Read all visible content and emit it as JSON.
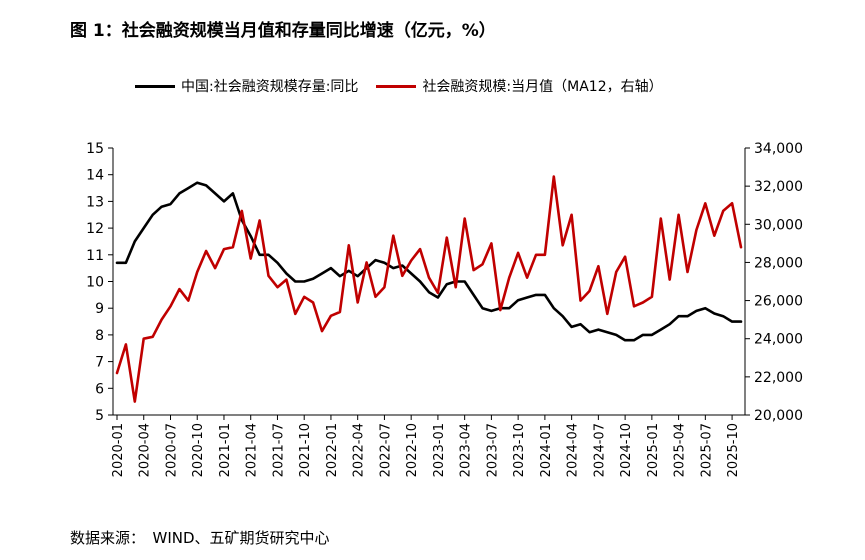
{
  "title": "图 1：社会融资规模当月值和存量同比增速（亿元，%）",
  "source": "数据来源：　WIND、五矿期货研究中心",
  "colors": {
    "series1": "#000000",
    "series2": "#c00000",
    "axis": "#000000"
  },
  "chart_data": {
    "type": "line",
    "x": [
      "2020-01",
      "2020-02",
      "2020-03",
      "2020-04",
      "2020-05",
      "2020-06",
      "2020-07",
      "2020-08",
      "2020-09",
      "2020-10",
      "2020-11",
      "2020-12",
      "2021-01",
      "2021-02",
      "2021-03",
      "2021-04",
      "2021-05",
      "2021-06",
      "2021-07",
      "2021-08",
      "2021-09",
      "2021-10",
      "2021-11",
      "2021-12",
      "2022-01",
      "2022-02",
      "2022-03",
      "2022-04",
      "2022-05",
      "2022-06",
      "2022-07",
      "2022-08",
      "2022-09",
      "2022-10",
      "2022-11",
      "2022-12",
      "2023-01",
      "2023-02",
      "2023-03",
      "2023-04",
      "2023-05",
      "2023-06",
      "2023-07",
      "2023-08",
      "2023-09",
      "2023-10",
      "2023-11",
      "2023-12",
      "2024-01",
      "2024-02",
      "2024-03",
      "2024-04",
      "2024-05",
      "2024-06",
      "2024-07",
      "2024-08",
      "2024-09",
      "2024-10",
      "2024-11",
      "2024-12",
      "2025-01",
      "2025-02",
      "2025-03",
      "2025-04",
      "2025-05",
      "2025-06",
      "2025-07",
      "2025-08",
      "2025-09",
      "2025-10",
      "2025-11"
    ],
    "x_tick_labels": [
      "2020-01",
      "2020-04",
      "2020-07",
      "2020-10",
      "2021-01",
      "2021-04",
      "2021-07",
      "2021-10",
      "2022-01",
      "2022-04",
      "2022-07",
      "2022-10",
      "2023-01",
      "2023-04",
      "2023-07",
      "2023-10",
      "2024-01",
      "2024-04",
      "2024-07",
      "2024-10",
      "2025-01",
      "2025-04",
      "2025-07",
      "2025-10"
    ],
    "series": [
      {
        "name": "中国:社会融资规模存量:同比",
        "axis": "left",
        "values": [
          10.7,
          10.7,
          11.5,
          12.0,
          12.5,
          12.8,
          12.9,
          13.3,
          13.5,
          13.7,
          13.6,
          13.3,
          13.0,
          13.3,
          12.3,
          11.7,
          11.0,
          11.0,
          10.7,
          10.3,
          10.0,
          10.0,
          10.1,
          10.3,
          10.5,
          10.2,
          10.4,
          10.2,
          10.5,
          10.8,
          10.7,
          10.5,
          10.6,
          10.3,
          10.0,
          9.6,
          9.4,
          9.9,
          10.0,
          10.0,
          9.5,
          9.0,
          8.9,
          9.0,
          9.0,
          9.3,
          9.4,
          9.5,
          9.5,
          9.0,
          8.7,
          8.3,
          8.4,
          8.1,
          8.2,
          8.1,
          8.0,
          7.8,
          7.8,
          8.0,
          8.0,
          8.2,
          8.4,
          8.7,
          8.7,
          8.9,
          9.0,
          8.8,
          8.7,
          8.5,
          8.5
        ]
      },
      {
        "name": "社会融资规模:当月值（MA12，右轴）",
        "axis": "right",
        "values": [
          22200,
          23700,
          20700,
          24000,
          24100,
          25000,
          25700,
          26600,
          26000,
          27500,
          28600,
          27700,
          28700,
          28800,
          30700,
          28200,
          30200,
          27300,
          26700,
          27100,
          25300,
          26200,
          25900,
          24400,
          25200,
          25400,
          28900,
          25900,
          28000,
          26200,
          26700,
          29400,
          27300,
          28100,
          28700,
          27200,
          26400,
          29300,
          26700,
          30300,
          27600,
          27900,
          29000,
          25500,
          27200,
          28500,
          27200,
          28400,
          28400,
          32500,
          28900,
          30500,
          26000,
          26500,
          27800,
          25300,
          27500,
          28300,
          25700,
          25900,
          26200,
          30300,
          27100,
          30500,
          27500,
          29700,
          31100,
          29400,
          30700,
          31100,
          28800
        ]
      }
    ],
    "y_left": {
      "min": 5,
      "max": 15,
      "ticks": [
        "5",
        "6",
        "7",
        "8",
        "9",
        "10",
        "11",
        "12",
        "13",
        "14",
        "15"
      ]
    },
    "y_right": {
      "min": 20000,
      "max": 34000,
      "ticks": [
        "20,000",
        "22,000",
        "24,000",
        "26,000",
        "28,000",
        "30,000",
        "32,000",
        "34,000"
      ]
    },
    "legend": [
      "中国:社会融资规模存量:同比",
      "社会融资规模:当月值（MA12，右轴）"
    ],
    "legend_position": "top"
  }
}
